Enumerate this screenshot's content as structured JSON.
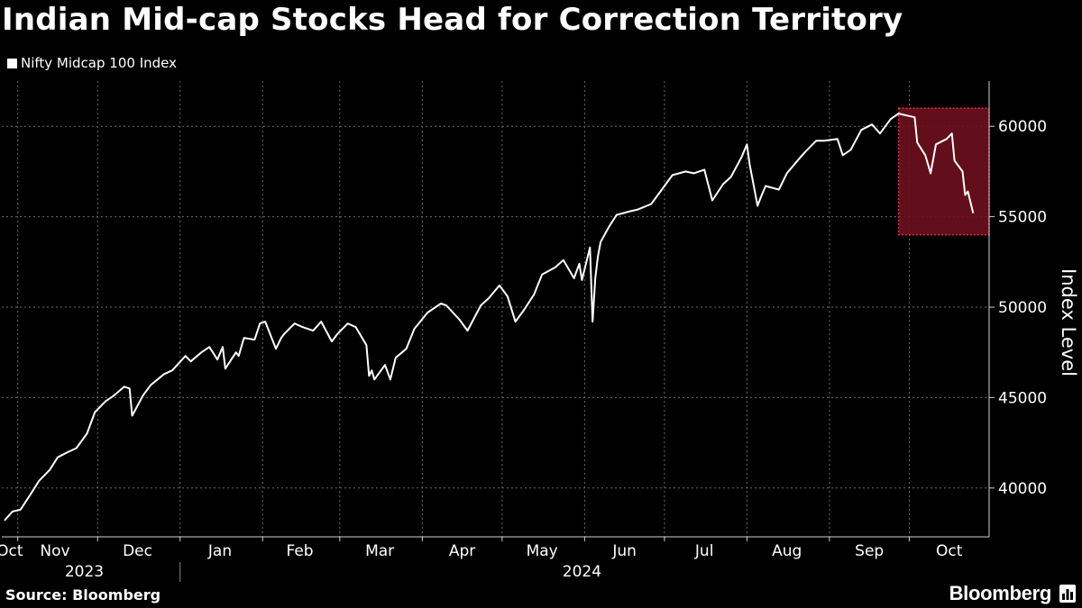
{
  "colors": {
    "background": "#000000",
    "line": "#ffffff",
    "grid": "#6b6b6b",
    "highlight": "#6e0f1e",
    "highlight_border": "#e0304a"
  },
  "chart_data": {
    "type": "line",
    "title": "Indian Mid-cap Stocks Head for Correction Territory",
    "series": [
      {
        "name": "Nifty Midcap 100 Index",
        "x": [
          "2023-10-27",
          "2023-10-30",
          "2023-11-02",
          "2023-11-06",
          "2023-11-09",
          "2023-11-13",
          "2023-11-16",
          "2023-11-20",
          "2023-11-23",
          "2023-11-27",
          "2023-11-30",
          "2023-12-04",
          "2023-12-07",
          "2023-12-11",
          "2023-12-13",
          "2023-12-14",
          "2023-12-18",
          "2023-12-20",
          "2023-12-21",
          "2023-12-26",
          "2023-12-29",
          "2024-01-03",
          "2024-01-05",
          "2024-01-09",
          "2024-01-12",
          "2024-01-15",
          "2024-01-17",
          "2024-01-18",
          "2024-01-22",
          "2024-01-23",
          "2024-01-25",
          "2024-01-29",
          "2024-01-31",
          "2024-02-02",
          "2024-02-06",
          "2024-02-08",
          "2024-02-09",
          "2024-02-13",
          "2024-02-16",
          "2024-02-20",
          "2024-02-23",
          "2024-02-27",
          "2024-02-29",
          "2024-03-04",
          "2024-03-07",
          "2024-03-11",
          "2024-03-12",
          "2024-03-13",
          "2024-03-14",
          "2024-03-18",
          "2024-03-20",
          "2024-03-22",
          "2024-03-26",
          "2024-03-29",
          "2024-04-03",
          "2024-04-08",
          "2024-04-10",
          "2024-04-15",
          "2024-04-18",
          "2024-04-23",
          "2024-04-26",
          "2024-04-30",
          "2024-05-03",
          "2024-05-06",
          "2024-05-09",
          "2024-05-13",
          "2024-05-16",
          "2024-05-21",
          "2024-05-24",
          "2024-05-28",
          "2024-05-30",
          "2024-05-31",
          "2024-06-03",
          "2024-06-04",
          "2024-06-05",
          "2024-06-06",
          "2024-06-07",
          "2024-06-10",
          "2024-06-13",
          "2024-06-18",
          "2024-06-21",
          "2024-06-26",
          "2024-07-01",
          "2024-07-04",
          "2024-07-09",
          "2024-07-12",
          "2024-07-16",
          "2024-07-19",
          "2024-07-23",
          "2024-07-26",
          "2024-07-30",
          "2024-08-01",
          "2024-08-02",
          "2024-08-05",
          "2024-08-06",
          "2024-08-08",
          "2024-08-13",
          "2024-08-16",
          "2024-08-20",
          "2024-08-23",
          "2024-08-27",
          "2024-08-30",
          "2024-09-04",
          "2024-09-06",
          "2024-09-09",
          "2024-09-13",
          "2024-09-17",
          "2024-09-20",
          "2024-09-24",
          "2024-09-27",
          "2024-09-30",
          "2024-10-03",
          "2024-10-04",
          "2024-10-07",
          "2024-10-09",
          "2024-10-11",
          "2024-10-15",
          "2024-10-17",
          "2024-10-18",
          "2024-10-21",
          "2024-10-22",
          "2024-10-23",
          "2024-10-25"
        ],
        "y": [
          38200,
          38700,
          38800,
          39700,
          40400,
          41000,
          41700,
          42000,
          42200,
          43000,
          44200,
          44800,
          45100,
          45600,
          45500,
          44000,
          45100,
          45500,
          45700,
          46300,
          46500,
          47300,
          47000,
          47500,
          47800,
          47100,
          47800,
          46600,
          47500,
          47300,
          48300,
          48200,
          49100,
          49200,
          47700,
          48300,
          48500,
          49100,
          48900,
          48700,
          49200,
          48100,
          48500,
          49100,
          48900,
          47900,
          46200,
          46500,
          46000,
          46800,
          46000,
          47200,
          47700,
          48800,
          49700,
          50200,
          50100,
          49300,
          48700,
          50100,
          50500,
          51200,
          50600,
          49200,
          49800,
          50700,
          51800,
          52200,
          52600,
          51600,
          52400,
          51500,
          53300,
          49200,
          51600,
          52800,
          53600,
          54400,
          55100,
          55300,
          55400,
          55700,
          56700,
          57300,
          57500,
          57400,
          57600,
          55900,
          56800,
          57200,
          58300,
          59000,
          57900,
          55600,
          56000,
          56700,
          56500,
          57400,
          58100,
          58600,
          59200,
          59200,
          59300,
          58400,
          58700,
          59800,
          60100,
          59600,
          60400,
          60700,
          60600,
          60500,
          59100,
          58400,
          57400,
          59000,
          59300,
          59600,
          58100,
          57500,
          56200,
          56400,
          55200
        ]
      }
    ],
    "highlight": {
      "x_start": "2024-09-27",
      "x_end": "2024-10-31",
      "y_start": 54000,
      "y_end": 61000
    },
    "ylabel": "Index Level",
    "ylim": [
      37300,
      62500
    ],
    "yticks": [
      40000,
      45000,
      50000,
      55000,
      60000
    ],
    "xlim": [
      "2023-10-26",
      "2024-10-31"
    ],
    "xtick_labels": [
      {
        "label": "Oct",
        "date": "2023-10-29"
      },
      {
        "label": "Nov",
        "date": "2023-11-15"
      },
      {
        "label": "Dec",
        "date": "2023-12-16"
      },
      {
        "label": "Jan",
        "date": "2024-01-16"
      },
      {
        "label": "Feb",
        "date": "2024-02-15"
      },
      {
        "label": "Mar",
        "date": "2024-03-16"
      },
      {
        "label": "Apr",
        "date": "2024-04-16"
      },
      {
        "label": "May",
        "date": "2024-05-16"
      },
      {
        "label": "Jun",
        "date": "2024-06-16"
      },
      {
        "label": "Jul",
        "date": "2024-07-16"
      },
      {
        "label": "Aug",
        "date": "2024-08-16"
      },
      {
        "label": "Sep",
        "date": "2024-09-16"
      },
      {
        "label": "Oct",
        "date": "2024-10-16"
      }
    ],
    "gridline_dates": [
      "2023-11-01",
      "2023-12-01",
      "2024-01-01",
      "2024-02-01",
      "2024-03-01",
      "2024-04-01",
      "2024-05-01",
      "2024-06-01",
      "2024-07-01",
      "2024-08-01",
      "2024-09-01",
      "2024-10-01"
    ],
    "year_labels": [
      {
        "label": "2023",
        "date": "2023-11-26"
      },
      {
        "label": "2024",
        "date": "2024-05-31"
      }
    ],
    "year_separator_date": "2024-01-01",
    "grid": true,
    "legend_position": "top-left"
  },
  "footer": {
    "source": "Source: Bloomberg",
    "brand": "Bloomberg"
  }
}
